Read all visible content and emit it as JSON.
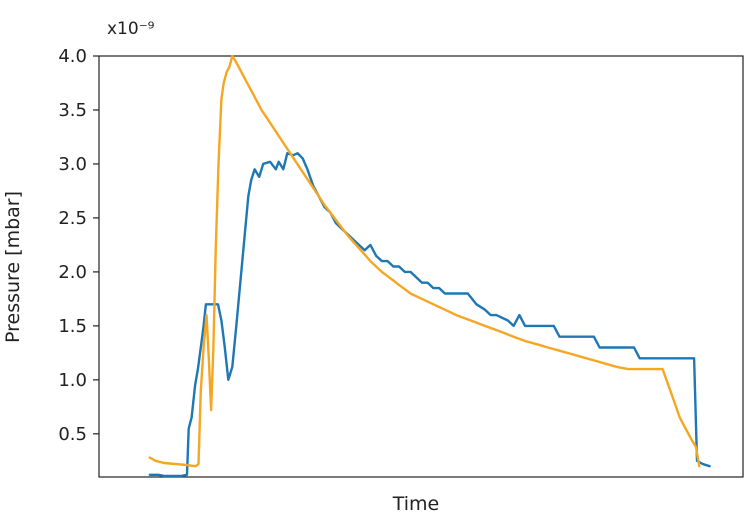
{
  "chart_data": {
    "type": "line",
    "title": "",
    "xlabel": "Time",
    "ylabel": "Pressure [mbar]",
    "y_scale_label": "x10⁻⁹",
    "xlim": [
      0,
      100
    ],
    "ylim": [
      0.1,
      4.0
    ],
    "yticks": [
      0.5,
      1.0,
      1.5,
      2.0,
      2.5,
      3.0,
      3.5,
      4.0
    ],
    "ytick_labels": [
      "0.5",
      "1.0",
      "1.5",
      "2.0",
      "2.5",
      "3.0",
      "3.5",
      "4.0"
    ],
    "xticks_visible": false,
    "grid": false,
    "legend": "none",
    "series": [
      {
        "color": "#1f77b4",
        "points": [
          [
            4.5,
            0.12
          ],
          [
            6,
            0.12
          ],
          [
            7,
            0.11
          ],
          [
            8,
            0.11
          ],
          [
            10,
            0.11
          ],
          [
            11,
            0.12
          ],
          [
            11.3,
            0.55
          ],
          [
            11.8,
            0.65
          ],
          [
            12.4,
            0.95
          ],
          [
            12.9,
            1.1
          ],
          [
            13.4,
            1.3
          ],
          [
            13.9,
            1.5
          ],
          [
            14.3,
            1.7
          ],
          [
            15.5,
            1.7
          ],
          [
            16.4,
            1.7
          ],
          [
            17,
            1.55
          ],
          [
            17.6,
            1.3
          ],
          [
            18.2,
            1.0
          ],
          [
            18.9,
            1.12
          ],
          [
            19.6,
            1.5
          ],
          [
            20.3,
            1.9
          ],
          [
            21,
            2.3
          ],
          [
            21.7,
            2.7
          ],
          [
            22.2,
            2.85
          ],
          [
            22.8,
            2.95
          ],
          [
            23.6,
            2.88
          ],
          [
            24.3,
            3.0
          ],
          [
            25.5,
            3.02
          ],
          [
            26.5,
            2.95
          ],
          [
            27,
            3.02
          ],
          [
            27.8,
            2.95
          ],
          [
            28.5,
            3.1
          ],
          [
            29.5,
            3.08
          ],
          [
            30.3,
            3.1
          ],
          [
            31.2,
            3.05
          ],
          [
            32,
            2.95
          ],
          [
            33,
            2.8
          ],
          [
            34,
            2.7
          ],
          [
            35,
            2.6
          ],
          [
            36,
            2.55
          ],
          [
            37,
            2.45
          ],
          [
            38,
            2.4
          ],
          [
            39,
            2.35
          ],
          [
            40,
            2.3
          ],
          [
            41,
            2.25
          ],
          [
            42,
            2.2
          ],
          [
            43,
            2.25
          ],
          [
            44,
            2.15
          ],
          [
            45,
            2.1
          ],
          [
            46,
            2.1
          ],
          [
            47,
            2.05
          ],
          [
            48,
            2.05
          ],
          [
            49,
            2.0
          ],
          [
            50,
            2.0
          ],
          [
            51,
            1.95
          ],
          [
            52,
            1.9
          ],
          [
            53,
            1.9
          ],
          [
            54,
            1.85
          ],
          [
            55,
            1.85
          ],
          [
            56,
            1.8
          ],
          [
            60,
            1.8
          ],
          [
            61.5,
            1.7
          ],
          [
            63,
            1.65
          ],
          [
            64,
            1.6
          ],
          [
            65,
            1.6
          ],
          [
            67,
            1.55
          ],
          [
            68,
            1.5
          ],
          [
            69,
            1.6
          ],
          [
            70,
            1.5
          ],
          [
            75,
            1.5
          ],
          [
            76,
            1.4
          ],
          [
            82,
            1.4
          ],
          [
            83,
            1.3
          ],
          [
            89,
            1.3
          ],
          [
            90,
            1.2
          ],
          [
            99.5,
            1.2
          ],
          [
            100,
            0.25
          ],
          [
            101,
            0.22
          ],
          [
            102.2,
            0.2
          ]
        ]
      },
      {
        "color": "#f5a623",
        "points": [
          [
            4.5,
            0.28
          ],
          [
            5.5,
            0.25
          ],
          [
            7,
            0.23
          ],
          [
            9,
            0.22
          ],
          [
            11,
            0.21
          ],
          [
            12.5,
            0.2
          ],
          [
            13,
            0.22
          ],
          [
            13.4,
            0.9
          ],
          [
            13.9,
            1.3
          ],
          [
            14.4,
            1.6
          ],
          [
            14.8,
            1.2
          ],
          [
            15.2,
            0.72
          ],
          [
            15.6,
            1.3
          ],
          [
            16,
            2.2
          ],
          [
            16.5,
            3.0
          ],
          [
            17,
            3.6
          ],
          [
            17.4,
            3.75
          ],
          [
            17.9,
            3.85
          ],
          [
            18.4,
            3.9
          ],
          [
            18.9,
            4.0
          ],
          [
            19.5,
            3.95
          ],
          [
            20,
            3.9
          ],
          [
            21,
            3.8
          ],
          [
            22,
            3.7
          ],
          [
            23,
            3.6
          ],
          [
            24,
            3.5
          ],
          [
            25,
            3.42
          ],
          [
            26,
            3.34
          ],
          [
            27,
            3.26
          ],
          [
            28,
            3.18
          ],
          [
            29,
            3.1
          ],
          [
            30,
            3.02
          ],
          [
            31,
            2.94
          ],
          [
            32,
            2.86
          ],
          [
            33,
            2.78
          ],
          [
            34,
            2.7
          ],
          [
            35,
            2.62
          ],
          [
            36,
            2.55
          ],
          [
            37,
            2.48
          ],
          [
            38,
            2.41
          ],
          [
            39,
            2.34
          ],
          [
            40,
            2.28
          ],
          [
            41,
            2.22
          ],
          [
            42,
            2.16
          ],
          [
            43,
            2.1
          ],
          [
            44,
            2.05
          ],
          [
            45,
            2.0
          ],
          [
            46,
            1.96
          ],
          [
            47,
            1.92
          ],
          [
            48,
            1.88
          ],
          [
            49,
            1.84
          ],
          [
            50,
            1.8
          ],
          [
            52,
            1.75
          ],
          [
            54,
            1.7
          ],
          [
            56,
            1.65
          ],
          [
            58,
            1.6
          ],
          [
            60,
            1.56
          ],
          [
            62,
            1.52
          ],
          [
            64,
            1.48
          ],
          [
            66,
            1.44
          ],
          [
            68,
            1.4
          ],
          [
            70,
            1.36
          ],
          [
            72,
            1.33
          ],
          [
            74,
            1.3
          ],
          [
            76,
            1.27
          ],
          [
            78,
            1.24
          ],
          [
            80,
            1.21
          ],
          [
            82,
            1.18
          ],
          [
            84,
            1.15
          ],
          [
            86,
            1.12
          ],
          [
            88,
            1.1
          ],
          [
            94,
            1.1
          ],
          [
            95,
            0.95
          ],
          [
            96,
            0.8
          ],
          [
            97,
            0.65
          ],
          [
            98,
            0.55
          ],
          [
            99,
            0.45
          ],
          [
            99.8,
            0.38
          ],
          [
            100.4,
            0.2
          ]
        ]
      }
    ]
  }
}
